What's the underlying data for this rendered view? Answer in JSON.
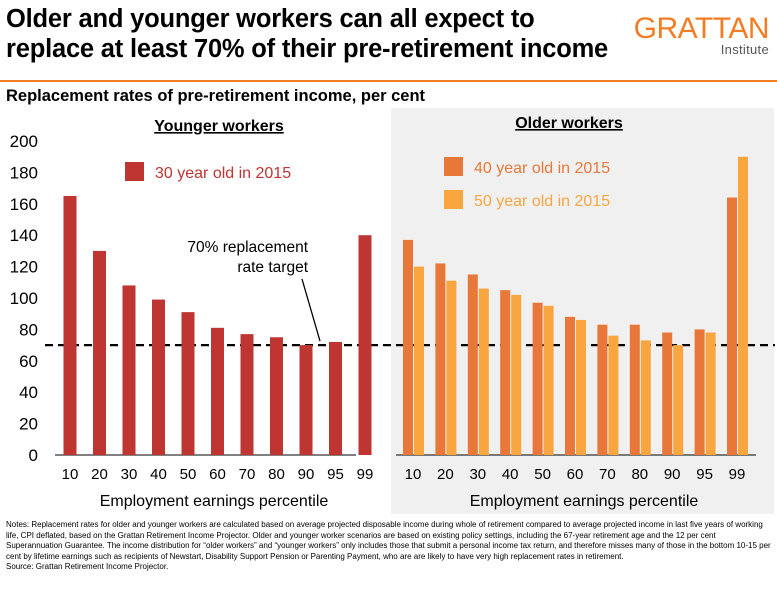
{
  "header": {
    "title_line1": "Older and younger workers can all expect to",
    "title_line2": "replace at least 70% of their pre-retirement income",
    "logo_word": "GRATTAN",
    "logo_sub": "Institute",
    "subtitle": "Replacement rates of pre-retirement income, per cent"
  },
  "colors": {
    "brand": "#f47d24",
    "younger": "#be3532",
    "older40": "#e8783a",
    "older50": "#f9a640"
  },
  "chart_data": [
    {
      "type": "bar",
      "title": "Younger workers",
      "xlabel": "Employment earnings percentile",
      "ylabel": "Replacement rates of pre-retirement income, per cent",
      "ylim": [
        0,
        200
      ],
      "yticks": [
        0,
        20,
        40,
        60,
        80,
        100,
        120,
        140,
        160,
        180,
        200
      ],
      "categories": [
        "10",
        "20",
        "30",
        "40",
        "50",
        "60",
        "70",
        "80",
        "90",
        "95",
        "99"
      ],
      "series": [
        {
          "name": "30 year old in 2015",
          "values": [
            165,
            130,
            108,
            99,
            91,
            81,
            77,
            75,
            70,
            72,
            140
          ]
        }
      ],
      "reference_line": {
        "value": 70,
        "label_line1": "70% replacement",
        "label_line2": "rate target"
      }
    },
    {
      "type": "bar",
      "title": "Older workers",
      "xlabel": "Employment earnings percentile",
      "ylim": [
        0,
        200
      ],
      "categories": [
        "10",
        "20",
        "30",
        "40",
        "50",
        "60",
        "70",
        "80",
        "90",
        "95",
        "99"
      ],
      "series": [
        {
          "name": "40 year old in 2015",
          "values": [
            137,
            122,
            115,
            105,
            97,
            88,
            83,
            83,
            78,
            80,
            164
          ]
        },
        {
          "name": "50 year old in 2015",
          "values": [
            120,
            111,
            106,
            102,
            95,
            86,
            76,
            73,
            70,
            78,
            190
          ]
        }
      ],
      "reference_line": {
        "value": 70
      }
    }
  ],
  "notes": {
    "text": "Notes: Replacement rates for older and younger workers are calculated based on average projected disposable income during whole of retirement compared to average projected income in last five years of working life, CPI deflated, based on the Grattan Retirement Income Projector. Older and younger worker scenarios are based on existing policy settings, including the 67-year retirement age and the 12 per cent Superannuation Guarantee. The income distribution for “older workers” and “younger workers” only includes those that submit a personal income tax return, and therefore misses many of those in the bottom 10-15 per cent by lifetime earnings such as recipients of Newstart, Disability Support Pension or Parenting Payment, who are are likely to have very high replacement rates in retirement.",
    "source": "Source: Grattan Retirement Income Projector."
  }
}
